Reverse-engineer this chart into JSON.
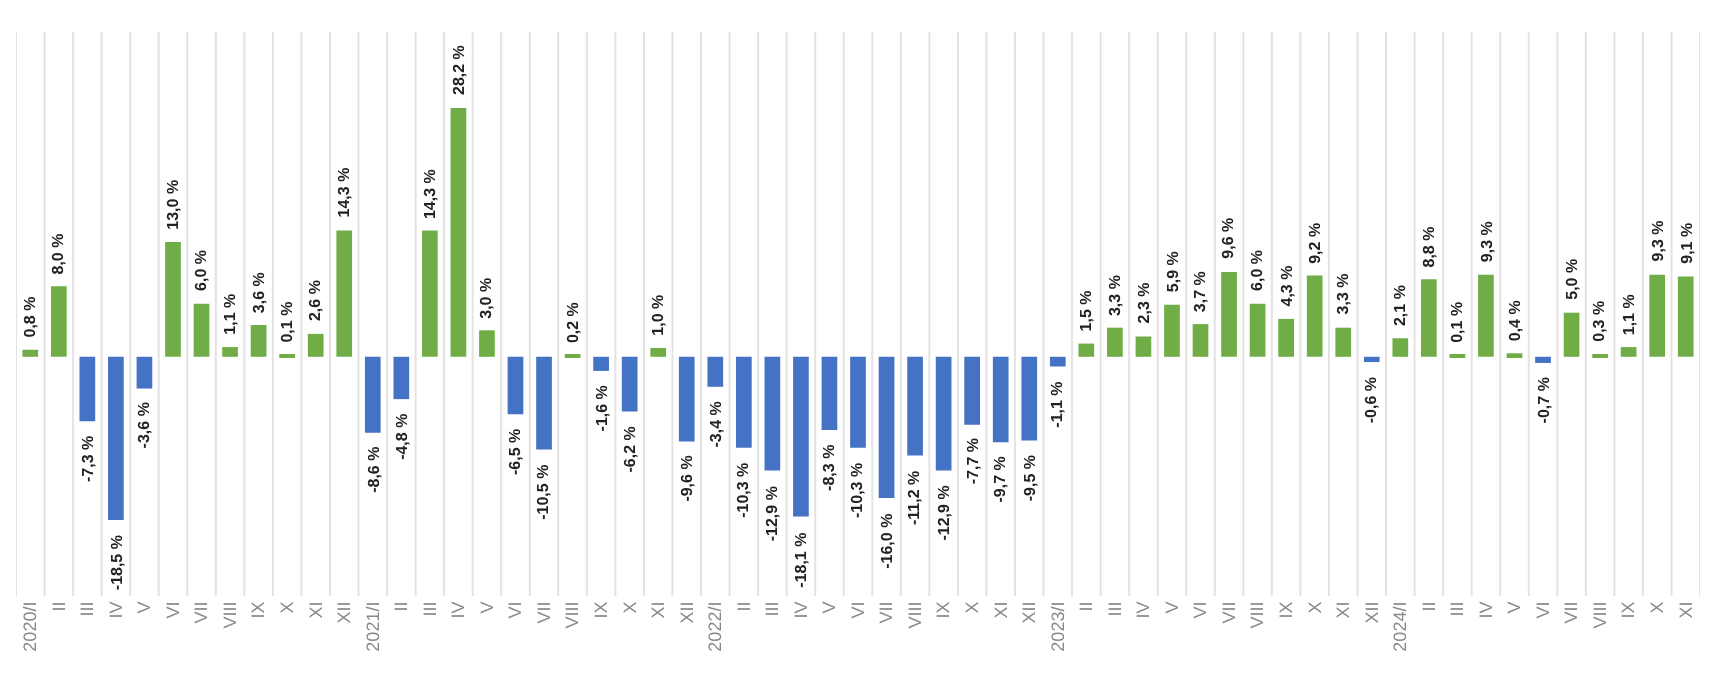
{
  "chart_data": {
    "type": "bar",
    "categories": [
      "2020/I",
      "II",
      "III",
      "IV",
      "V",
      "VI",
      "VII",
      "VIII",
      "IX",
      "X",
      "XI",
      "XII",
      "2021/I",
      "II",
      "III",
      "IV",
      "V",
      "VI",
      "VII",
      "VIII",
      "IX",
      "X",
      "XI",
      "XII",
      "2022/I",
      "II",
      "III",
      "IV",
      "V",
      "VI",
      "VII",
      "VIII",
      "IX",
      "X",
      "XI",
      "XII",
      "2023/I",
      "II",
      "III",
      "IV",
      "V",
      "VI",
      "VII",
      "VIII",
      "IX",
      "X",
      "XI",
      "XII",
      "2024/I",
      "II",
      "III",
      "IV",
      "V",
      "VI",
      "VII",
      "VIII",
      "IX",
      "X",
      "XI"
    ],
    "values": [
      0.8,
      8.0,
      -7.3,
      -18.5,
      -3.6,
      13.0,
      6.0,
      1.1,
      3.6,
      0.1,
      2.6,
      14.3,
      -8.6,
      -4.8,
      14.3,
      28.2,
      3.0,
      -6.5,
      -10.5,
      0.2,
      -1.6,
      -6.2,
      1.0,
      -9.6,
      -3.4,
      -10.3,
      -12.9,
      -18.1,
      -8.3,
      -10.3,
      -16.0,
      -11.2,
      -12.9,
      -7.7,
      -9.7,
      -9.5,
      -1.1,
      1.5,
      3.3,
      2.3,
      5.9,
      3.7,
      9.6,
      6.0,
      4.3,
      9.2,
      3.3,
      -0.6,
      2.1,
      8.8,
      0.1,
      9.3,
      0.4,
      -0.7,
      5.0,
      0.3,
      1.1,
      9.3,
      9.1
    ],
    "value_labels": [
      "0,8 %",
      "8,0 %",
      "-7,3 %",
      "-18,5 %",
      "-3,6 %",
      "13,0 %",
      "6,0 %",
      "1,1 %",
      "3,6 %",
      "0,1 %",
      "2,6 %",
      "14,3 %",
      "-8,6 %",
      "-4,8 %",
      "14,3 %",
      "28,2 %",
      "3,0 %",
      "-6,5 %",
      "-10,5 %",
      "0,2 %",
      "-1,6 %",
      "-6,2 %",
      "1,0 %",
      "-9,6 %",
      "-3,4 %",
      "-10,3 %",
      "-12,9 %",
      "-18,1 %",
      "-8,3 %",
      "-10,3 %",
      "-16,0 %",
      "-11,2 %",
      "-12,9 %",
      "-7,7 %",
      "-9,7 %",
      "-9,5 %",
      "-1,1 %",
      "1,5 %",
      "3,3 %",
      "2,3 %",
      "5,9 %",
      "3,7 %",
      "9,6 %",
      "6,0 %",
      "4,3 %",
      "9,2 %",
      "3,3 %",
      "-0,6 %",
      "2,1 %",
      "8,8 %",
      "0,1 %",
      "9,3 %",
      "0,4 %",
      "-0,7 %",
      "5,0 %",
      "0,3 %",
      "1,1 %",
      "9,3 %",
      "9,1 %"
    ],
    "colors": [
      "#70ad47",
      "#70ad47",
      "#4472c4",
      "#4472c4",
      "#4472c4",
      "#70ad47",
      "#70ad47",
      "#70ad47",
      "#70ad47",
      "#70ad47",
      "#70ad47",
      "#70ad47",
      "#4472c4",
      "#4472c4",
      "#70ad47",
      "#70ad47",
      "#70ad47",
      "#4472c4",
      "#4472c4",
      "#70ad47",
      "#4472c4",
      "#4472c4",
      "#70ad47",
      "#4472c4",
      "#4472c4",
      "#4472c4",
      "#4472c4",
      "#4472c4",
      "#4472c4",
      "#4472c4",
      "#4472c4",
      "#4472c4",
      "#4472c4",
      "#4472c4",
      "#4472c4",
      "#4472c4",
      "#4472c4",
      "#70ad47",
      "#70ad47",
      "#70ad47",
      "#70ad47",
      "#70ad47",
      "#70ad47",
      "#70ad47",
      "#70ad47",
      "#70ad47",
      "#70ad47",
      "#4472c4",
      "#70ad47",
      "#70ad47",
      "#70ad47",
      "#70ad47",
      "#70ad47",
      "#4472c4",
      "#70ad47",
      "#70ad47",
      "#70ad47",
      "#70ad47",
      "#70ad47"
    ],
    "grid": "x"
  }
}
